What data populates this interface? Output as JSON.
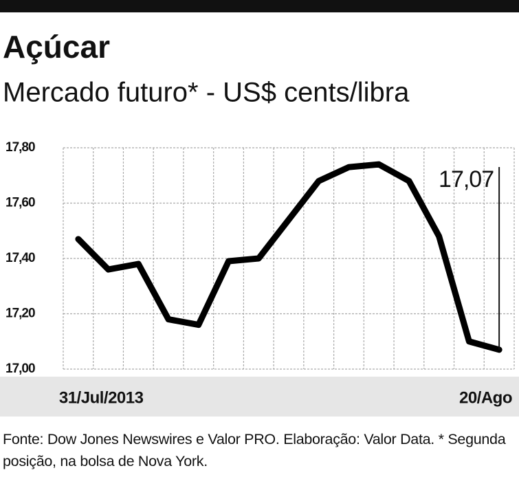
{
  "chart_data": {
    "type": "line",
    "title": "Açúcar",
    "subtitle": "Mercado futuro* - US$ cents/libra",
    "categories": [
      "31/Jul/2013",
      null,
      null,
      null,
      null,
      null,
      null,
      null,
      null,
      null,
      null,
      null,
      null,
      null,
      "20/Ago"
    ],
    "values": [
      17.47,
      17.36,
      17.38,
      17.18,
      17.16,
      17.39,
      17.4,
      17.54,
      17.68,
      17.73,
      17.74,
      17.68,
      17.48,
      17.1,
      17.07
    ],
    "value_labels": [
      null,
      null,
      null,
      null,
      null,
      null,
      null,
      null,
      null,
      null,
      null,
      null,
      null,
      null,
      "17,07"
    ],
    "color": "#000000",
    "ylim": [
      17.0,
      17.8
    ],
    "yticks": [
      {
        "value": 17.0,
        "label": "17,00"
      },
      {
        "value": 17.2,
        "label": "17,20"
      },
      {
        "value": 17.4,
        "label": "17,40"
      },
      {
        "value": 17.6,
        "label": "17,60"
      },
      {
        "value": 17.8,
        "label": "17,80"
      }
    ],
    "grid": true,
    "footnote": "Fonte: Dow Jones Newswires e Valor PRO. Elaboração: Valor Data. * Segunda posição, na bolsa de Nova York."
  }
}
